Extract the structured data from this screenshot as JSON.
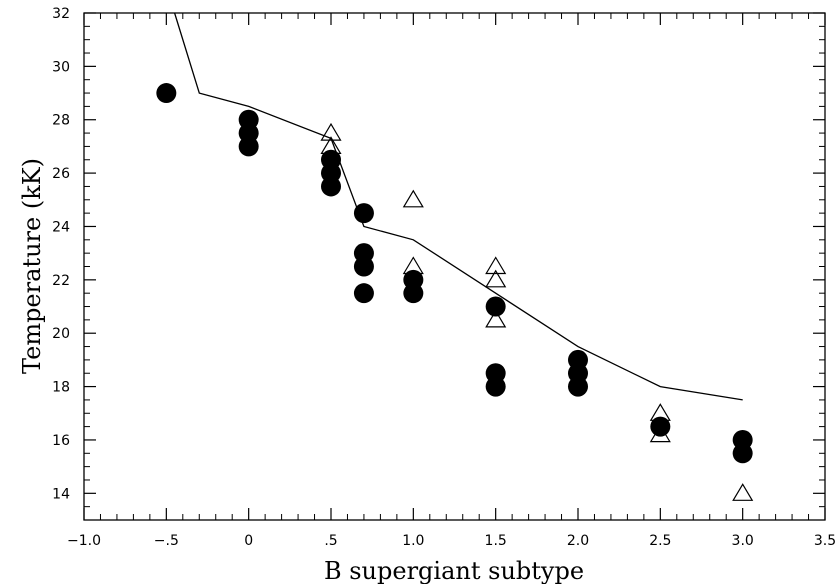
{
  "chart_data": {
    "type": "scatter",
    "title": "",
    "xlabel": "B supergiant subtype",
    "ylabel": "Temperature (kK)",
    "xlim": [
      -1.0,
      3.5
    ],
    "ylim": [
      13,
      32
    ],
    "x_ticks": [
      -1.0,
      -0.5,
      0,
      0.5,
      1.0,
      1.5,
      2.0,
      2.5,
      3.0,
      3.5
    ],
    "x_tick_labels": [
      "−1.0",
      "−.5",
      "0",
      ".5",
      "1.0",
      "1.5",
      "2.0",
      "2.5",
      "3.0",
      "3.5"
    ],
    "y_ticks": [
      14,
      16,
      18,
      20,
      22,
      24,
      26,
      28,
      30,
      32
    ],
    "y_tick_labels": [
      "14",
      "16",
      "18",
      "20",
      "22",
      "24",
      "26",
      "28",
      "30",
      "32"
    ],
    "grid": false,
    "series": [
      {
        "marker": "filled-circle",
        "color": "#000000",
        "points": [
          [
            -0.5,
            29.0
          ],
          [
            0,
            28.0
          ],
          [
            0,
            27.5
          ],
          [
            0,
            27.0
          ],
          [
            0.5,
            26.5
          ],
          [
            0.5,
            26.0
          ],
          [
            0.5,
            25.5
          ],
          [
            0.7,
            24.5
          ],
          [
            0.7,
            23.0
          ],
          [
            0.7,
            22.5
          ],
          [
            0.7,
            21.5
          ],
          [
            1.0,
            22.0
          ],
          [
            1.0,
            21.5
          ],
          [
            1.5,
            21.0
          ],
          [
            1.5,
            18.5
          ],
          [
            1.5,
            18.0
          ],
          [
            2.0,
            19.0
          ],
          [
            2.0,
            18.5
          ],
          [
            2.0,
            18.0
          ],
          [
            2.5,
            16.5
          ],
          [
            3.0,
            16.0
          ],
          [
            3.0,
            15.5
          ]
        ]
      },
      {
        "marker": "open-triangle",
        "color": "#000000",
        "points": [
          [
            0.5,
            27.5
          ],
          [
            0.5,
            27.0
          ],
          [
            1.0,
            25.0
          ],
          [
            1.0,
            22.5
          ],
          [
            1.5,
            22.5
          ],
          [
            1.5,
            22.0
          ],
          [
            1.5,
            20.5
          ],
          [
            2.5,
            17.0
          ],
          [
            2.5,
            16.2
          ],
          [
            3.0,
            14.0
          ]
        ]
      },
      {
        "marker": "line",
        "color": "#000000",
        "points": [
          [
            -0.45,
            32.0
          ],
          [
            -0.3,
            29.0
          ],
          [
            0,
            28.5
          ],
          [
            0.5,
            27.3
          ],
          [
            0.7,
            24.0
          ],
          [
            1.0,
            23.5
          ],
          [
            1.5,
            21.5
          ],
          [
            2.0,
            19.5
          ],
          [
            2.5,
            18.0
          ],
          [
            3.0,
            17.5
          ]
        ]
      }
    ]
  }
}
